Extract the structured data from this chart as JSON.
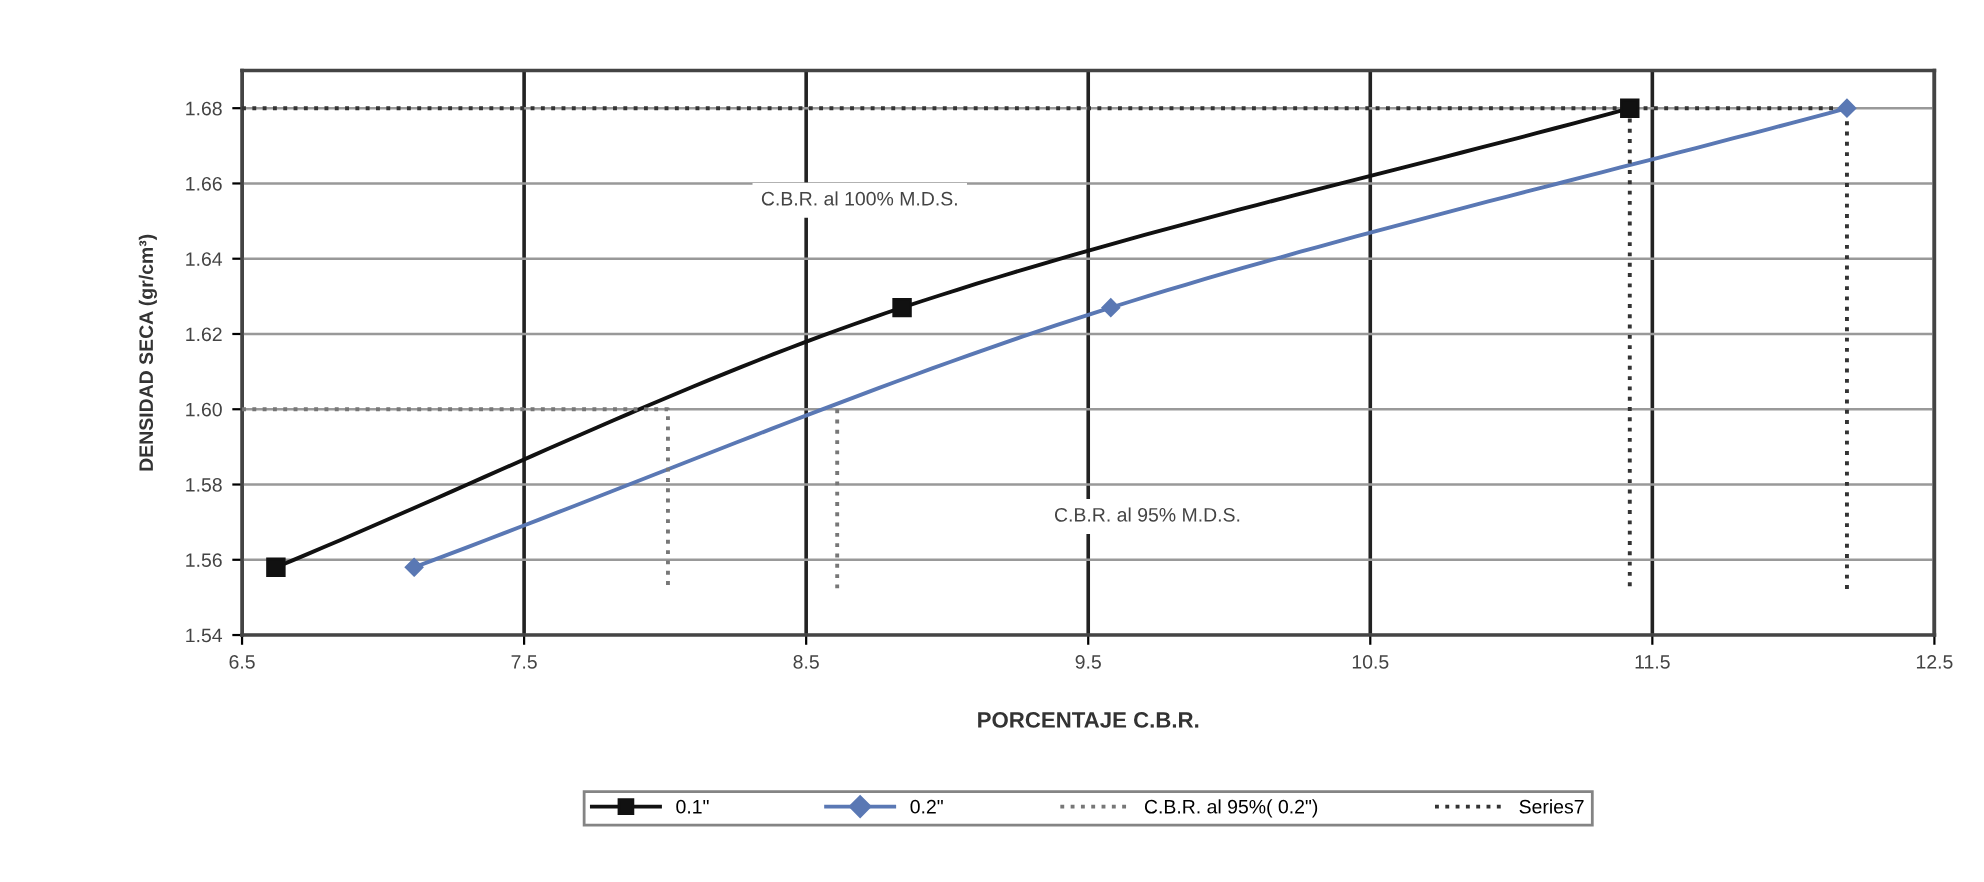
{
  "chart_data": {
    "type": "line",
    "xlabel": "PORCENTAJE C.B.R.",
    "ylabel": "DENSIDAD SECA (gr/cm³)",
    "xlim": [
      6.5,
      12.5
    ],
    "xticks": [
      6.5,
      7.5,
      8.5,
      9.5,
      10.5,
      11.5,
      12.5
    ],
    "ylim": [
      1.54,
      1.69
    ],
    "yticks": [
      1.54,
      1.56,
      1.58,
      {
        "value": 1.6,
        "label": "1.60"
      },
      1.62,
      1.64,
      1.66,
      1.68
    ],
    "grid": true,
    "legend": "bottom",
    "series": [
      {
        "name": "0.1\"",
        "color": "#111111",
        "marker": "square",
        "line_style": "solid",
        "x": [
          6.62,
          8.84,
          11.42
        ],
        "values": [
          1.558,
          1.627,
          1.68
        ]
      },
      {
        "name": "0.2\"",
        "color": "#5a78b4",
        "marker": "diamond",
        "line_style": "solid",
        "x": [
          7.11,
          9.58,
          12.19
        ],
        "values": [
          1.558,
          1.627,
          1.68
        ]
      },
      {
        "name": "C.B.R. al 95%( 0.2\")",
        "color": "#777777",
        "marker": "none",
        "line_style": "dotted",
        "x": [
          6.5,
          8.01,
          8.01,
          null,
          8.61,
          8.61
        ],
        "values": [
          1.6,
          1.6,
          1.552,
          null,
          1.6,
          1.552
        ]
      },
      {
        "name": "Series7",
        "color": "#333333",
        "marker": "none",
        "line_style": "dotted",
        "x": [
          6.5,
          12.19,
          12.19,
          null,
          11.42,
          11.42
        ],
        "values": [
          1.68,
          1.68,
          1.552,
          null,
          1.68,
          1.552
        ]
      }
    ],
    "annotations": [
      "C.B.R. al 100% M.D.S.",
      "C.B.R. al 95% M.D.S."
    ]
  }
}
